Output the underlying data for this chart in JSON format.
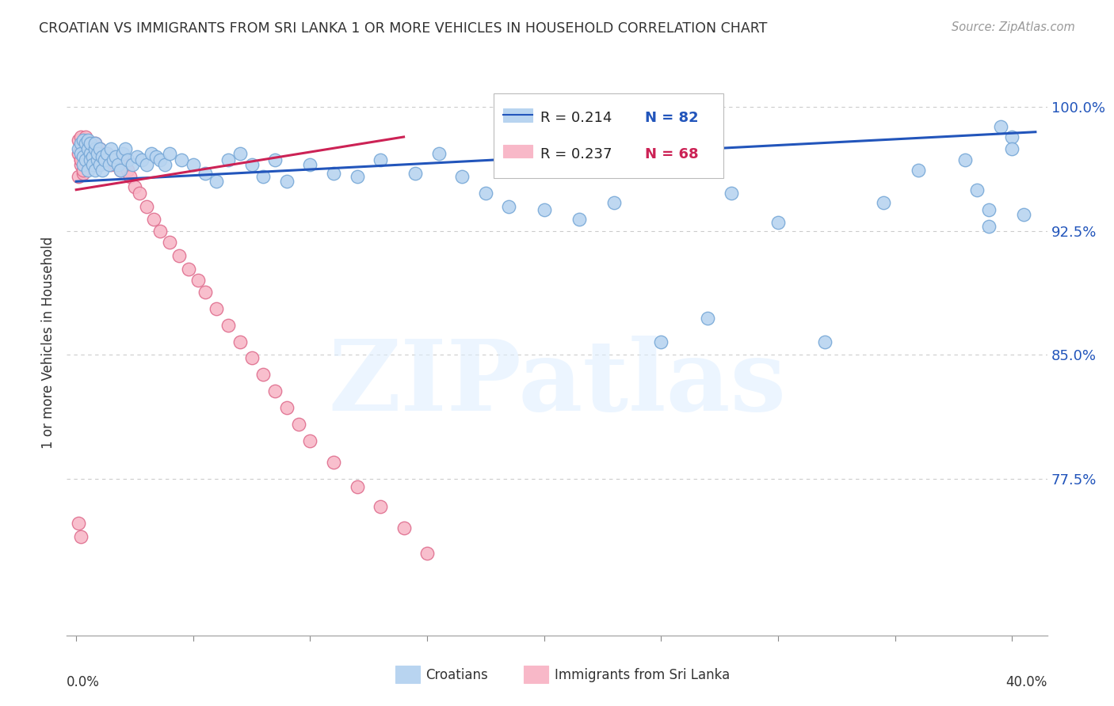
{
  "title": "CROATIAN VS IMMIGRANTS FROM SRI LANKA 1 OR MORE VEHICLES IN HOUSEHOLD CORRELATION CHART",
  "source": "Source: ZipAtlas.com",
  "ylabel": "1 or more Vehicles in Household",
  "legend_blue_r": "R = 0.214",
  "legend_blue_n": "N = 82",
  "legend_pink_r": "R = 0.237",
  "legend_pink_n": "N = 68",
  "croatians_label": "Croatians",
  "srilanka_label": "Immigrants from Sri Lanka",
  "blue_color": "#b8d4f0",
  "blue_edge": "#7aaad8",
  "blue_line_color": "#2255bb",
  "pink_color": "#f8b8c8",
  "pink_edge": "#e07090",
  "pink_line_color": "#cc2255",
  "label_color": "#2255bb",
  "watermark": "ZIPatlas",
  "background_color": "#ffffff",
  "grid_color": "#cccccc",
  "title_color": "#333333",
  "source_color": "#999999",
  "ytick_vals": [
    0.775,
    0.85,
    0.925,
    1.0
  ],
  "ytick_labels": [
    "77.5%",
    "85.0%",
    "92.5%",
    "100.0%"
  ],
  "ylim_low": 0.68,
  "ylim_high": 1.035,
  "xlim_low": -0.004,
  "xlim_high": 0.415,
  "blue_x": [
    0.001,
    0.002,
    0.002,
    0.003,
    0.003,
    0.003,
    0.004,
    0.004,
    0.005,
    0.005,
    0.005,
    0.006,
    0.006,
    0.006,
    0.007,
    0.007,
    0.008,
    0.008,
    0.008,
    0.009,
    0.009,
    0.01,
    0.01,
    0.011,
    0.011,
    0.012,
    0.013,
    0.014,
    0.015,
    0.016,
    0.017,
    0.018,
    0.019,
    0.02,
    0.021,
    0.022,
    0.024,
    0.026,
    0.028,
    0.03,
    0.032,
    0.034,
    0.036,
    0.038,
    0.04,
    0.045,
    0.05,
    0.055,
    0.06,
    0.065,
    0.07,
    0.075,
    0.08,
    0.085,
    0.09,
    0.1,
    0.11,
    0.12,
    0.13,
    0.145,
    0.155,
    0.165,
    0.175,
    0.185,
    0.2,
    0.215,
    0.23,
    0.25,
    0.27,
    0.28,
    0.3,
    0.32,
    0.345,
    0.36,
    0.38,
    0.385,
    0.39,
    0.395,
    0.4,
    0.405,
    0.39,
    0.4
  ],
  "blue_y": [
    0.975,
    0.978,
    0.972,
    0.98,
    0.97,
    0.965,
    0.978,
    0.968,
    0.975,
    0.98,
    0.962,
    0.972,
    0.968,
    0.978,
    0.97,
    0.965,
    0.975,
    0.962,
    0.978,
    0.968,
    0.972,
    0.975,
    0.965,
    0.97,
    0.962,
    0.968,
    0.972,
    0.965,
    0.975,
    0.968,
    0.97,
    0.965,
    0.962,
    0.972,
    0.975,
    0.968,
    0.965,
    0.97,
    0.968,
    0.965,
    0.972,
    0.97,
    0.968,
    0.965,
    0.972,
    0.968,
    0.965,
    0.96,
    0.955,
    0.968,
    0.972,
    0.965,
    0.958,
    0.968,
    0.955,
    0.965,
    0.96,
    0.958,
    0.968,
    0.96,
    0.972,
    0.958,
    0.948,
    0.94,
    0.938,
    0.932,
    0.942,
    0.858,
    0.872,
    0.948,
    0.93,
    0.858,
    0.942,
    0.962,
    0.968,
    0.95,
    0.938,
    0.988,
    0.982,
    0.935,
    0.928,
    0.975
  ],
  "pink_x": [
    0.001,
    0.001,
    0.002,
    0.002,
    0.002,
    0.003,
    0.003,
    0.003,
    0.004,
    0.004,
    0.004,
    0.005,
    0.005,
    0.005,
    0.006,
    0.006,
    0.007,
    0.007,
    0.008,
    0.008,
    0.009,
    0.009,
    0.01,
    0.01,
    0.011,
    0.012,
    0.013,
    0.014,
    0.015,
    0.016,
    0.017,
    0.018,
    0.019,
    0.02,
    0.021,
    0.022,
    0.023,
    0.025,
    0.027,
    0.03,
    0.033,
    0.036,
    0.04,
    0.044,
    0.048,
    0.052,
    0.055,
    0.06,
    0.065,
    0.07,
    0.075,
    0.08,
    0.085,
    0.09,
    0.095,
    0.1,
    0.11,
    0.12,
    0.13,
    0.14,
    0.15,
    0.001,
    0.002,
    0.003,
    0.002,
    0.003,
    0.001,
    0.002
  ],
  "pink_y": [
    0.98,
    0.972,
    0.975,
    0.982,
    0.968,
    0.978,
    0.972,
    0.965,
    0.975,
    0.982,
    0.968,
    0.978,
    0.972,
    0.965,
    0.975,
    0.968,
    0.972,
    0.965,
    0.978,
    0.968,
    0.972,
    0.965,
    0.975,
    0.968,
    0.972,
    0.968,
    0.972,
    0.968,
    0.965,
    0.97,
    0.965,
    0.968,
    0.962,
    0.968,
    0.965,
    0.962,
    0.958,
    0.952,
    0.948,
    0.94,
    0.932,
    0.925,
    0.918,
    0.91,
    0.902,
    0.895,
    0.888,
    0.878,
    0.868,
    0.858,
    0.848,
    0.838,
    0.828,
    0.818,
    0.808,
    0.798,
    0.785,
    0.77,
    0.758,
    0.745,
    0.73,
    0.958,
    0.965,
    0.96,
    0.968,
    0.962,
    0.748,
    0.74
  ]
}
